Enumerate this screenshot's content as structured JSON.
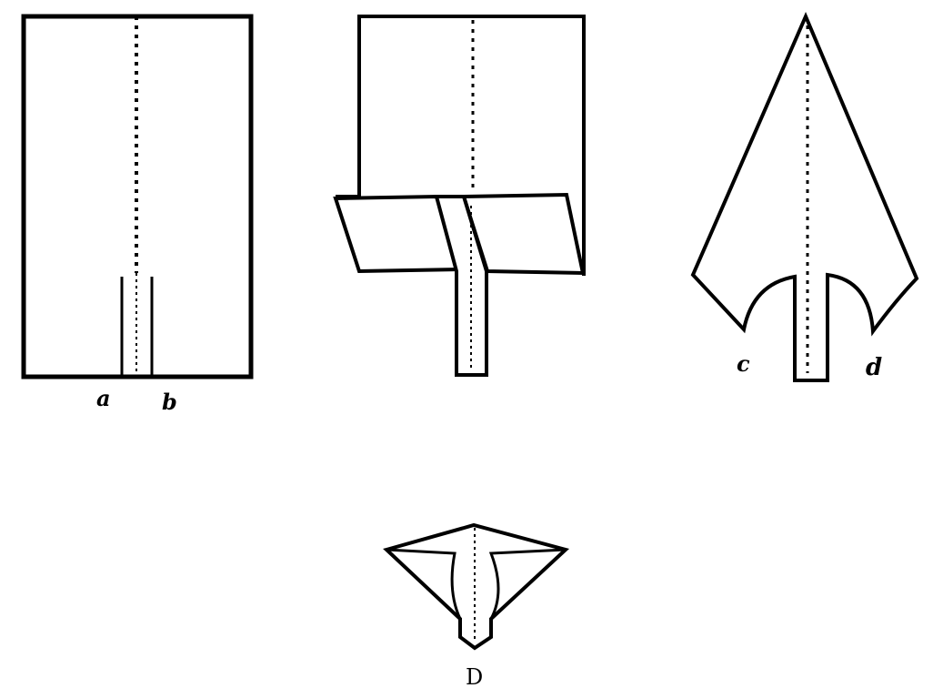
{
  "figure1": {
    "labels": {
      "a": "a",
      "b": "b"
    }
  },
  "figure3": {
    "labels": {
      "c": "c",
      "d": "d"
    }
  },
  "figure4": {
    "caption": "D"
  }
}
